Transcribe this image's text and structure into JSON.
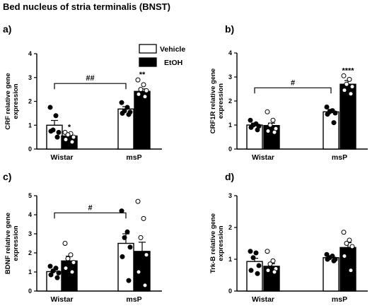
{
  "figure_title": "Bed nucleus of stria terminalis (BNST)",
  "legend": [
    {
      "label": "Vehicle",
      "fill": "#ffffff"
    },
    {
      "label": "EtOH",
      "fill": "#000000"
    }
  ],
  "chart_data": [
    {
      "type": "bar",
      "panel": "a)",
      "ylabel": "CRF relative gene expression",
      "categories": [
        "Wistar",
        "msP"
      ],
      "ylim": [
        0,
        4
      ],
      "yticks": [
        0,
        1,
        2,
        3,
        4
      ],
      "series": [
        {
          "name": "Vehicle",
          "values": [
            1.0,
            1.68
          ],
          "sem": [
            0.2,
            0.1
          ],
          "points": [
            [
              1.75,
              1.4,
              0.8,
              0.7,
              0.75,
              0.5
            ],
            [
              1.95,
              1.75,
              1.6,
              1.55,
              1.5,
              1.45
            ]
          ]
        },
        {
          "name": "EtOH",
          "values": [
            0.55,
            2.42
          ],
          "sem": [
            0.08,
            0.1
          ],
          "points": [
            [
              0.7,
              0.65,
              0.6,
              0.5,
              0.4,
              0.3
            ],
            [
              2.9,
              2.7,
              2.5,
              2.45,
              2.3,
              2.2
            ]
          ]
        }
      ],
      "annotations": [
        {
          "text": "*",
          "target": "Wistar EtOH"
        },
        {
          "text": "**",
          "target": "msP EtOH"
        }
      ],
      "bracket": {
        "text": "##",
        "from": "Wistar Vehicle",
        "to": "msP Vehicle",
        "y": 2.75
      }
    },
    {
      "type": "bar",
      "panel": "b)",
      "ylabel": "CRF1R relative gene expression",
      "categories": [
        "Wistar",
        "msP"
      ],
      "ylim": [
        0,
        4
      ],
      "yticks": [
        0,
        1,
        2,
        3,
        4
      ],
      "series": [
        {
          "name": "Vehicle",
          "values": [
            1.0,
            1.55
          ],
          "sem": [
            0.08,
            0.1
          ],
          "points": [
            [
              1.2,
              1.05,
              1.0,
              0.95,
              0.9,
              0.8
            ],
            [
              1.75,
              1.6,
              1.55,
              1.5,
              1.45,
              1.1
            ]
          ]
        },
        {
          "name": "EtOH",
          "values": [
            0.98,
            2.7
          ],
          "sem": [
            0.1,
            0.15
          ],
          "points": [
            [
              1.55,
              1.2,
              1.0,
              0.85,
              0.75,
              0.7
            ],
            [
              3.05,
              2.9,
              2.7,
              2.6,
              2.45,
              2.3
            ]
          ]
        }
      ],
      "annotations": [
        {
          "text": "****",
          "target": "msP EtOH"
        }
      ],
      "bracket": {
        "text": "#",
        "from": "Wistar Vehicle",
        "to": "msP Vehicle",
        "y": 2.55
      }
    },
    {
      "type": "bar",
      "panel": "c)",
      "ylabel": "BDNF relative gene expression",
      "categories": [
        "Wistar",
        "msP"
      ],
      "ylim": [
        0,
        5
      ],
      "yticks": [
        0,
        1,
        2,
        3,
        4,
        5
      ],
      "series": [
        {
          "name": "Vehicle",
          "values": [
            1.02,
            2.5
          ],
          "sem": [
            0.1,
            0.5
          ],
          "points": [
            [
              1.3,
              1.2,
              1.05,
              0.95,
              0.85,
              0.7
            ],
            [
              4.2,
              3.1,
              2.8,
              2.3,
              1.8,
              0.55
            ]
          ]
        },
        {
          "name": "EtOH",
          "values": [
            1.58,
            2.08
          ],
          "sem": [
            0.25,
            0.48
          ],
          "points": [
            [
              2.5,
              1.9,
              1.7,
              1.5,
              1.2,
              1.0
            ],
            [
              4.7,
              3.8,
              2.8,
              1.9,
              1.0,
              0.3
            ]
          ]
        }
      ],
      "annotations": [],
      "bracket": {
        "text": "#",
        "from": "Wistar Vehicle",
        "to": "msP Vehicle",
        "y": 4.1
      }
    },
    {
      "type": "bar",
      "panel": "d)",
      "ylabel": "Trk-B relative gene expression",
      "categories": [
        "Wistar",
        "msP"
      ],
      "ylim": [
        0,
        3
      ],
      "yticks": [
        0,
        1,
        2,
        3
      ],
      "series": [
        {
          "name": "Vehicle",
          "values": [
            0.93,
            1.05
          ],
          "sem": [
            0.1,
            0.05
          ],
          "points": [
            [
              1.25,
              1.2,
              1.05,
              0.8,
              0.65,
              0.55
            ],
            [
              1.15,
              1.1,
              1.05,
              1.0,
              1.0,
              0.95
            ]
          ]
        },
        {
          "name": "EtOH",
          "values": [
            0.78,
            1.37
          ],
          "sem": [
            0.08,
            0.15
          ],
          "points": [
            [
              1.25,
              0.95,
              0.85,
              0.7,
              0.65,
              0.6
            ],
            [
              1.85,
              1.6,
              1.5,
              1.4,
              1.1,
              0.65
            ]
          ]
        }
      ],
      "annotations": [],
      "bracket": null
    }
  ]
}
